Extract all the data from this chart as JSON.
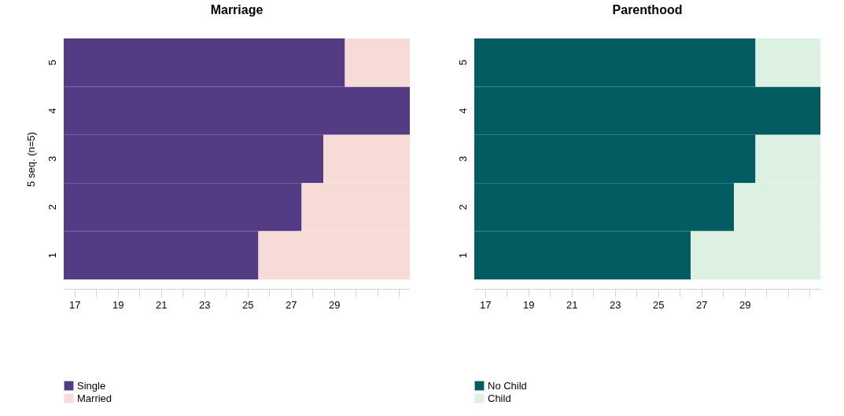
{
  "chart_data": [
    {
      "type": "bar",
      "title": "Marriage",
      "ylabel": "5 seq. (n=5)",
      "orientation": "horizontal",
      "categories": [
        "5",
        "4",
        "3",
        "2",
        "1"
      ],
      "series": [
        {
          "name": "Single",
          "color": "#543c85",
          "base": [
            16.5,
            16.5,
            16.5,
            16.5,
            16.5
          ],
          "values": [
            13,
            16,
            12,
            11,
            9
          ]
        },
        {
          "name": "Married",
          "color": "#f7dbd7",
          "base": [
            29.5,
            null,
            28.5,
            27.5,
            25.5
          ],
          "values": [
            3,
            null,
            4,
            5,
            7
          ]
        }
      ],
      "xlim": [
        16.5,
        32.5
      ],
      "xticks": [
        17,
        {
          "value": 18,
          "label": null
        },
        19,
        {
          "value": 20,
          "label": null
        },
        21,
        {
          "value": 22,
          "label": null
        },
        23,
        {
          "value": 24,
          "label": null
        },
        25,
        {
          "value": 26,
          "label": null
        },
        27,
        {
          "value": 28,
          "label": null
        },
        29,
        {
          "value": 30,
          "label": null
        },
        {
          "value": 31,
          "label": null
        },
        {
          "value": 32,
          "label": null
        }
      ],
      "grid": false,
      "legend": "bottom"
    },
    {
      "type": "bar",
      "title": "Parenthood",
      "orientation": "horizontal",
      "categories": [
        "5",
        "4",
        "3",
        "2",
        "1"
      ],
      "series": [
        {
          "name": "No Child",
          "color": "#035c62",
          "base": [
            16.5,
            16.5,
            16.5,
            16.5,
            16.5
          ],
          "values": [
            13,
            16,
            13,
            12,
            10
          ]
        },
        {
          "name": "Child",
          "color": "#ddf1e3",
          "base": [
            29.5,
            null,
            29.5,
            28.5,
            26.5
          ],
          "values": [
            3,
            null,
            3,
            4,
            6
          ]
        }
      ],
      "xlim": [
        16.5,
        32.5
      ],
      "xticks": [
        17,
        {
          "value": 18,
          "label": null
        },
        19,
        {
          "value": 20,
          "label": null
        },
        21,
        {
          "value": 22,
          "label": null
        },
        23,
        {
          "value": 24,
          "label": null
        },
        25,
        {
          "value": 26,
          "label": null
        },
        27,
        {
          "value": 28,
          "label": null
        },
        29,
        {
          "value": 30,
          "label": null
        },
        {
          "value": 31,
          "label": null
        },
        {
          "value": 32,
          "label": null
        }
      ],
      "grid": false,
      "legend": "bottom"
    }
  ]
}
